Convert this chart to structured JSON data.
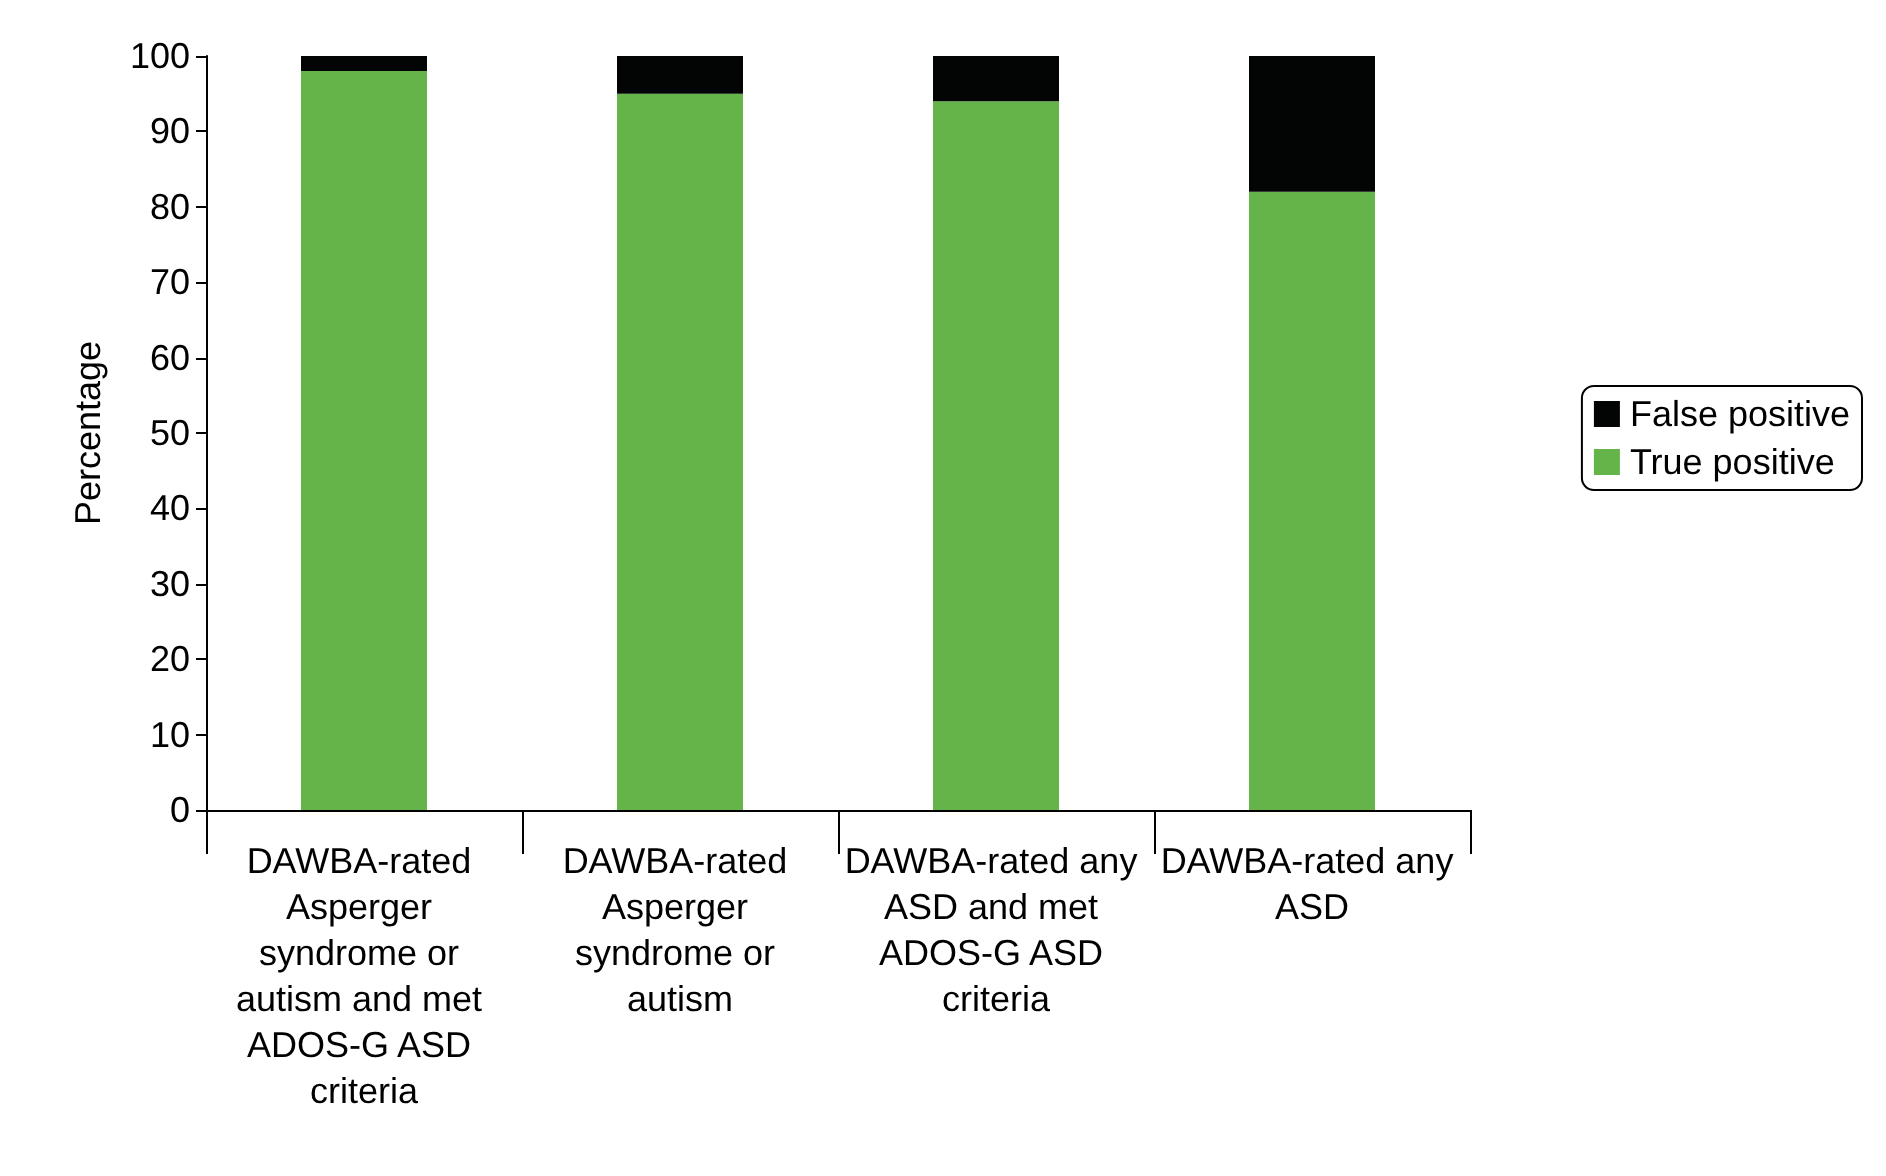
{
  "chart_data": {
    "type": "bar",
    "stacked": true,
    "ylabel": "Percentage",
    "categories": [
      "DAWBA-rated Asperger syndrome or autism and met ADOS-G ASD criteria",
      "DAWBA-rated Asperger syndrome or autism",
      "DAWBA-rated any ASD and met ADOS-G ASD criteria",
      "DAWBA-rated any ASD"
    ],
    "series": [
      {
        "name": "True positive",
        "color": "#64b44a",
        "values": [
          98,
          95,
          94,
          82
        ]
      },
      {
        "name": "False positive",
        "color": "#030504",
        "values": [
          2,
          5,
          6,
          18
        ]
      }
    ],
    "ylim": [
      0,
      100
    ],
    "yticks": [
      0,
      10,
      20,
      30,
      40,
      50,
      60,
      70,
      80,
      90,
      100
    ],
    "grid": false,
    "legend": "right"
  }
}
